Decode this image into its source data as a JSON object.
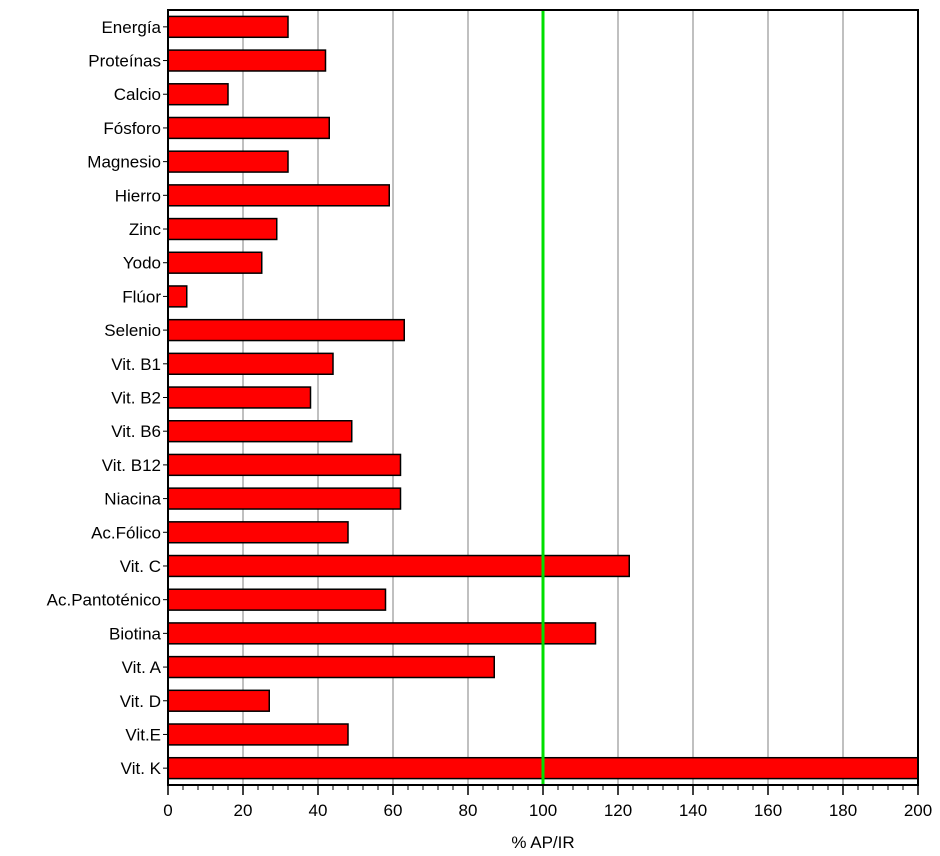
{
  "chart_data": {
    "type": "bar",
    "orientation": "horizontal",
    "categories": [
      "Energía",
      "Proteínas",
      "Calcio",
      "Fósforo",
      "Magnesio",
      "Hierro",
      "Zinc",
      "Yodo",
      "Flúor",
      "Selenio",
      "Vit. B1",
      "Vit. B2",
      "Vit. B6",
      "Vit. B12",
      "Niacina",
      "Ac.Fólico",
      "Vit. C",
      "Ac.Pantoténico",
      "Biotina",
      "Vit. A",
      "Vit. D",
      "Vit.E",
      "Vit. K"
    ],
    "values": [
      32,
      42,
      16,
      43,
      32,
      59,
      29,
      25,
      5,
      63,
      44,
      38,
      49,
      62,
      62,
      48,
      123,
      58,
      114,
      87,
      27,
      48,
      200
    ],
    "xlabel": "% AP/IR",
    "ylabel": "",
    "xlim": [
      0,
      200
    ],
    "x_ticks": [
      "0",
      "20",
      "40",
      "60",
      "80",
      "100",
      "120",
      "140",
      "160",
      "180",
      "200"
    ],
    "reference_line": {
      "x": 100
    },
    "grid": "vertical",
    "colors": {
      "bar": "#ff0000",
      "bar_border": "#000000",
      "reference_line": "#00e000",
      "grid": "#808080"
    }
  }
}
